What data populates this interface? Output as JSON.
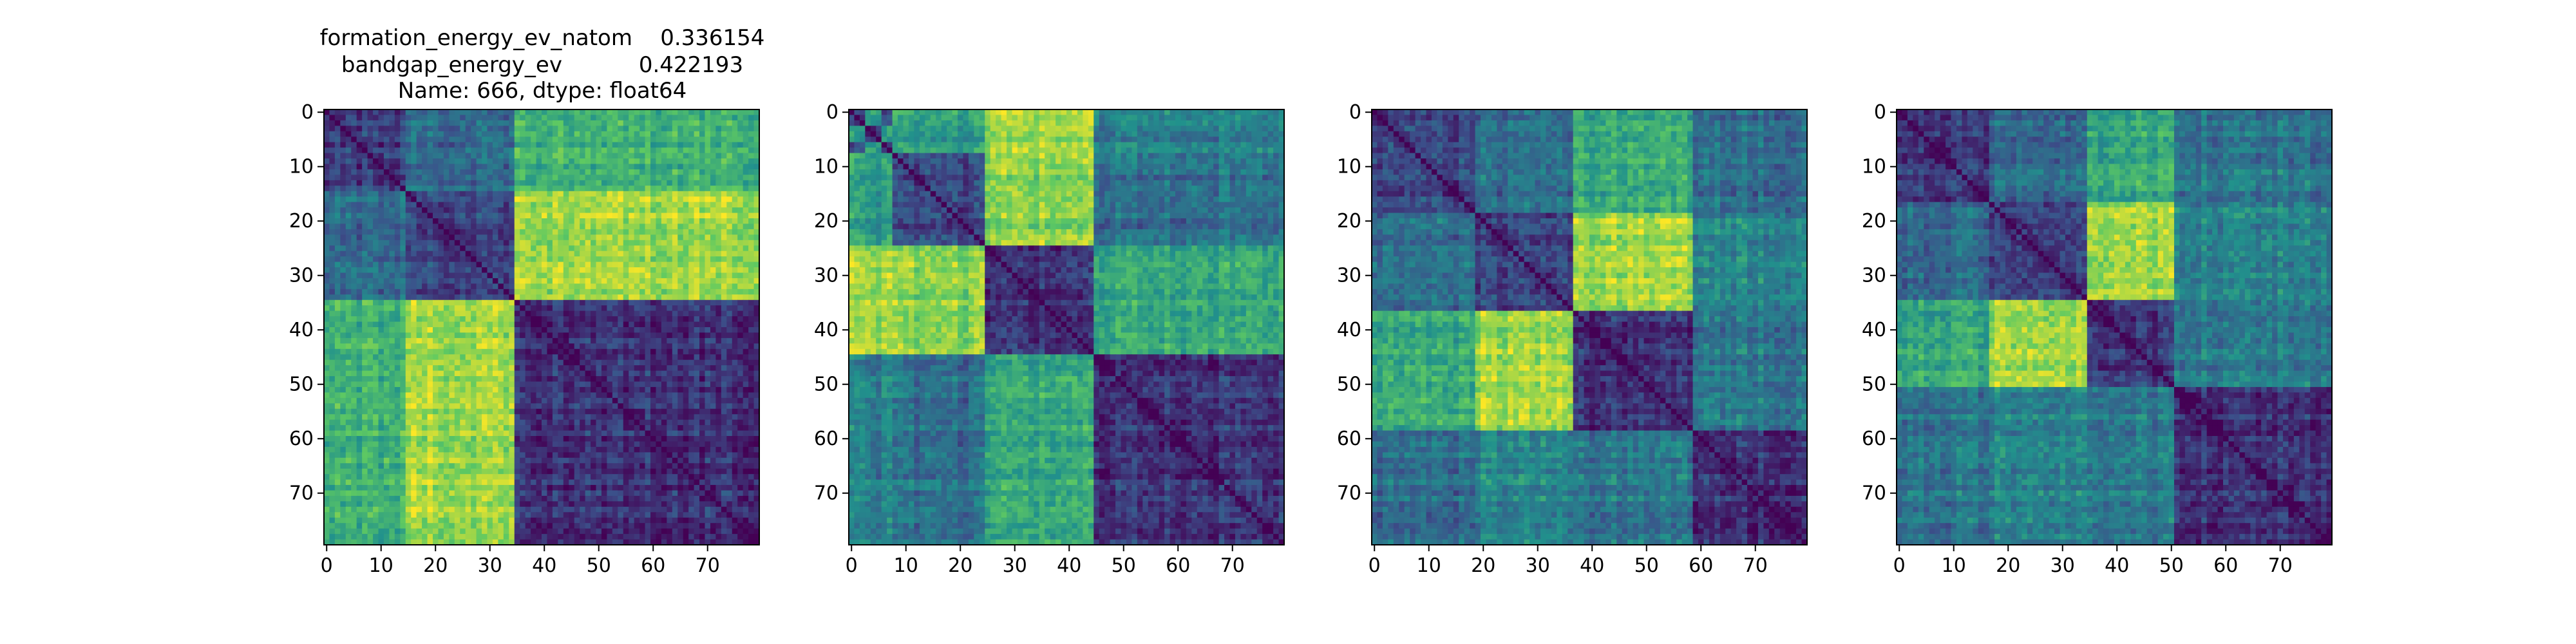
{
  "figure": {
    "title_lines": [
      "formation_energy_ev_natom    0.336154",
      "bandgap_energy_ev           0.422193",
      "Name: 666, dtype: float64"
    ]
  },
  "chart_data": [
    {
      "type": "heatmap",
      "title": "",
      "xlabel": "",
      "ylabel": "",
      "shape": [
        80,
        80
      ],
      "xlim": [
        0,
        79
      ],
      "ylim": [
        79,
        0
      ],
      "xticks": [
        0,
        10,
        20,
        30,
        40,
        50,
        60,
        70
      ],
      "yticks": [
        0,
        10,
        20,
        30,
        40,
        50,
        60,
        70
      ],
      "colormap": "viridis",
      "colormap_colors": [
        "#440154",
        "#3b528b",
        "#21918c",
        "#5ec962",
        "#fde725"
      ],
      "diagonal_value": 0.0,
      "block_boundaries": [
        0,
        15,
        35,
        80
      ],
      "block_level_matrix": [
        [
          0.2,
          0.35,
          0.65
        ],
        [
          0.35,
          0.2,
          0.85
        ],
        [
          0.65,
          0.85,
          0.15
        ]
      ]
    },
    {
      "type": "heatmap",
      "title": "",
      "xlabel": "",
      "ylabel": "",
      "shape": [
        80,
        80
      ],
      "xlim": [
        0,
        79
      ],
      "ylim": [
        79,
        0
      ],
      "xticks": [
        0,
        10,
        20,
        30,
        40,
        50,
        60,
        70
      ],
      "yticks": [
        0,
        10,
        20,
        30,
        40,
        50,
        60,
        70
      ],
      "colormap": "viridis",
      "colormap_colors": [
        "#440154",
        "#3b528b",
        "#21918c",
        "#5ec962",
        "#fde725"
      ],
      "diagonal_value": 0.0,
      "block_boundaries": [
        0,
        3,
        6,
        8,
        25,
        45,
        80
      ],
      "block_level_matrix": [
        [
          0.3,
          0.6,
          0.3,
          0.6,
          0.9,
          0.5
        ],
        [
          0.6,
          0.2,
          0.6,
          0.5,
          0.85,
          0.4
        ],
        [
          0.3,
          0.6,
          0.3,
          0.6,
          0.9,
          0.5
        ],
        [
          0.6,
          0.5,
          0.6,
          0.2,
          0.8,
          0.35
        ],
        [
          0.9,
          0.85,
          0.9,
          0.8,
          0.15,
          0.6
        ],
        [
          0.5,
          0.4,
          0.5,
          0.35,
          0.6,
          0.15
        ]
      ]
    },
    {
      "type": "heatmap",
      "title": "",
      "xlabel": "",
      "ylabel": "",
      "shape": [
        80,
        80
      ],
      "xlim": [
        0,
        79
      ],
      "ylim": [
        79,
        0
      ],
      "xticks": [
        0,
        10,
        20,
        30,
        40,
        50,
        60,
        70
      ],
      "yticks": [
        0,
        10,
        20,
        30,
        40,
        50,
        60,
        70
      ],
      "colormap": "viridis",
      "colormap_colors": [
        "#440154",
        "#3b528b",
        "#21918c",
        "#5ec962",
        "#fde725"
      ],
      "diagonal_value": 0.0,
      "block_boundaries": [
        0,
        19,
        37,
        59,
        80
      ],
      "block_level_matrix": [
        [
          0.2,
          0.35,
          0.6,
          0.35
        ],
        [
          0.35,
          0.2,
          0.85,
          0.45
        ],
        [
          0.6,
          0.85,
          0.15,
          0.4
        ],
        [
          0.35,
          0.45,
          0.4,
          0.15
        ]
      ]
    },
    {
      "type": "heatmap",
      "title": "",
      "xlabel": "",
      "ylabel": "",
      "shape": [
        80,
        80
      ],
      "xlim": [
        0,
        79
      ],
      "ylim": [
        79,
        0
      ],
      "xticks": [
        0,
        10,
        20,
        30,
        40,
        50,
        60,
        70
      ],
      "yticks": [
        0,
        10,
        20,
        30,
        40,
        50,
        60,
        70
      ],
      "colormap": "viridis",
      "colormap_colors": [
        "#440154",
        "#3b528b",
        "#21918c",
        "#5ec962",
        "#fde725"
      ],
      "diagonal_value": 0.0,
      "block_boundaries": [
        0,
        17,
        35,
        51,
        80
      ],
      "block_level_matrix": [
        [
          0.2,
          0.35,
          0.6,
          0.4
        ],
        [
          0.35,
          0.2,
          0.85,
          0.45
        ],
        [
          0.6,
          0.85,
          0.15,
          0.4
        ],
        [
          0.4,
          0.45,
          0.4,
          0.15
        ]
      ]
    }
  ]
}
